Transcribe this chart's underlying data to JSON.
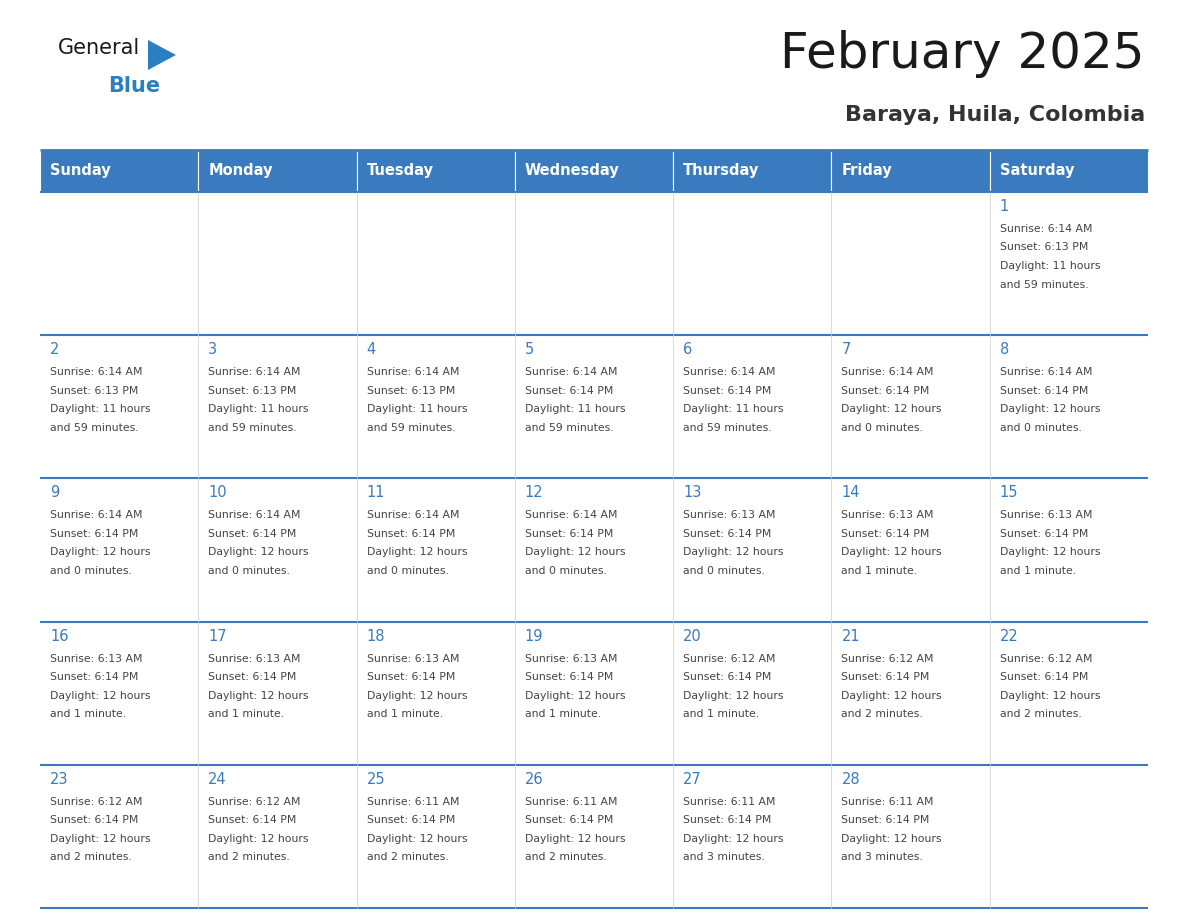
{
  "title": "February 2025",
  "subtitle": "Baraya, Huila, Colombia",
  "days_of_week": [
    "Sunday",
    "Monday",
    "Tuesday",
    "Wednesday",
    "Thursday",
    "Friday",
    "Saturday"
  ],
  "header_bg": "#3a7abf",
  "header_text": "#ffffff",
  "cell_bg": "#ffffff",
  "cell_border_color": "#3a7abf",
  "title_color": "#1a1a1a",
  "subtitle_color": "#333333",
  "day_number_color": "#3a7abf",
  "cell_text_color": "#444444",
  "logo_color_general": "#1a1a1a",
  "logo_color_blue": "#2a7fc1",
  "calendar_data": [
    [
      null,
      null,
      null,
      null,
      null,
      null,
      {
        "day": 1,
        "sunrise": "6:14 AM",
        "sunset": "6:13 PM",
        "daylight": "11 hours",
        "daylight2": "and 59 minutes."
      }
    ],
    [
      {
        "day": 2,
        "sunrise": "6:14 AM",
        "sunset": "6:13 PM",
        "daylight": "11 hours",
        "daylight2": "and 59 minutes."
      },
      {
        "day": 3,
        "sunrise": "6:14 AM",
        "sunset": "6:13 PM",
        "daylight": "11 hours",
        "daylight2": "and 59 minutes."
      },
      {
        "day": 4,
        "sunrise": "6:14 AM",
        "sunset": "6:13 PM",
        "daylight": "11 hours",
        "daylight2": "and 59 minutes."
      },
      {
        "day": 5,
        "sunrise": "6:14 AM",
        "sunset": "6:14 PM",
        "daylight": "11 hours",
        "daylight2": "and 59 minutes."
      },
      {
        "day": 6,
        "sunrise": "6:14 AM",
        "sunset": "6:14 PM",
        "daylight": "11 hours",
        "daylight2": "and 59 minutes."
      },
      {
        "day": 7,
        "sunrise": "6:14 AM",
        "sunset": "6:14 PM",
        "daylight": "12 hours",
        "daylight2": "and 0 minutes."
      },
      {
        "day": 8,
        "sunrise": "6:14 AM",
        "sunset": "6:14 PM",
        "daylight": "12 hours",
        "daylight2": "and 0 minutes."
      }
    ],
    [
      {
        "day": 9,
        "sunrise": "6:14 AM",
        "sunset": "6:14 PM",
        "daylight": "12 hours",
        "daylight2": "and 0 minutes."
      },
      {
        "day": 10,
        "sunrise": "6:14 AM",
        "sunset": "6:14 PM",
        "daylight": "12 hours",
        "daylight2": "and 0 minutes."
      },
      {
        "day": 11,
        "sunrise": "6:14 AM",
        "sunset": "6:14 PM",
        "daylight": "12 hours",
        "daylight2": "and 0 minutes."
      },
      {
        "day": 12,
        "sunrise": "6:14 AM",
        "sunset": "6:14 PM",
        "daylight": "12 hours",
        "daylight2": "and 0 minutes."
      },
      {
        "day": 13,
        "sunrise": "6:13 AM",
        "sunset": "6:14 PM",
        "daylight": "12 hours",
        "daylight2": "and 0 minutes."
      },
      {
        "day": 14,
        "sunrise": "6:13 AM",
        "sunset": "6:14 PM",
        "daylight": "12 hours",
        "daylight2": "and 1 minute."
      },
      {
        "day": 15,
        "sunrise": "6:13 AM",
        "sunset": "6:14 PM",
        "daylight": "12 hours",
        "daylight2": "and 1 minute."
      }
    ],
    [
      {
        "day": 16,
        "sunrise": "6:13 AM",
        "sunset": "6:14 PM",
        "daylight": "12 hours",
        "daylight2": "and 1 minute."
      },
      {
        "day": 17,
        "sunrise": "6:13 AM",
        "sunset": "6:14 PM",
        "daylight": "12 hours",
        "daylight2": "and 1 minute."
      },
      {
        "day": 18,
        "sunrise": "6:13 AM",
        "sunset": "6:14 PM",
        "daylight": "12 hours",
        "daylight2": "and 1 minute."
      },
      {
        "day": 19,
        "sunrise": "6:13 AM",
        "sunset": "6:14 PM",
        "daylight": "12 hours",
        "daylight2": "and 1 minute."
      },
      {
        "day": 20,
        "sunrise": "6:12 AM",
        "sunset": "6:14 PM",
        "daylight": "12 hours",
        "daylight2": "and 1 minute."
      },
      {
        "day": 21,
        "sunrise": "6:12 AM",
        "sunset": "6:14 PM",
        "daylight": "12 hours",
        "daylight2": "and 2 minutes."
      },
      {
        "day": 22,
        "sunrise": "6:12 AM",
        "sunset": "6:14 PM",
        "daylight": "12 hours",
        "daylight2": "and 2 minutes."
      }
    ],
    [
      {
        "day": 23,
        "sunrise": "6:12 AM",
        "sunset": "6:14 PM",
        "daylight": "12 hours",
        "daylight2": "and 2 minutes."
      },
      {
        "day": 24,
        "sunrise": "6:12 AM",
        "sunset": "6:14 PM",
        "daylight": "12 hours",
        "daylight2": "and 2 minutes."
      },
      {
        "day": 25,
        "sunrise": "6:11 AM",
        "sunset": "6:14 PM",
        "daylight": "12 hours",
        "daylight2": "and 2 minutes."
      },
      {
        "day": 26,
        "sunrise": "6:11 AM",
        "sunset": "6:14 PM",
        "daylight": "12 hours",
        "daylight2": "and 2 minutes."
      },
      {
        "day": 27,
        "sunrise": "6:11 AM",
        "sunset": "6:14 PM",
        "daylight": "12 hours",
        "daylight2": "and 3 minutes."
      },
      {
        "day": 28,
        "sunrise": "6:11 AM",
        "sunset": "6:14 PM",
        "daylight": "12 hours",
        "daylight2": "and 3 minutes."
      },
      null
    ]
  ]
}
